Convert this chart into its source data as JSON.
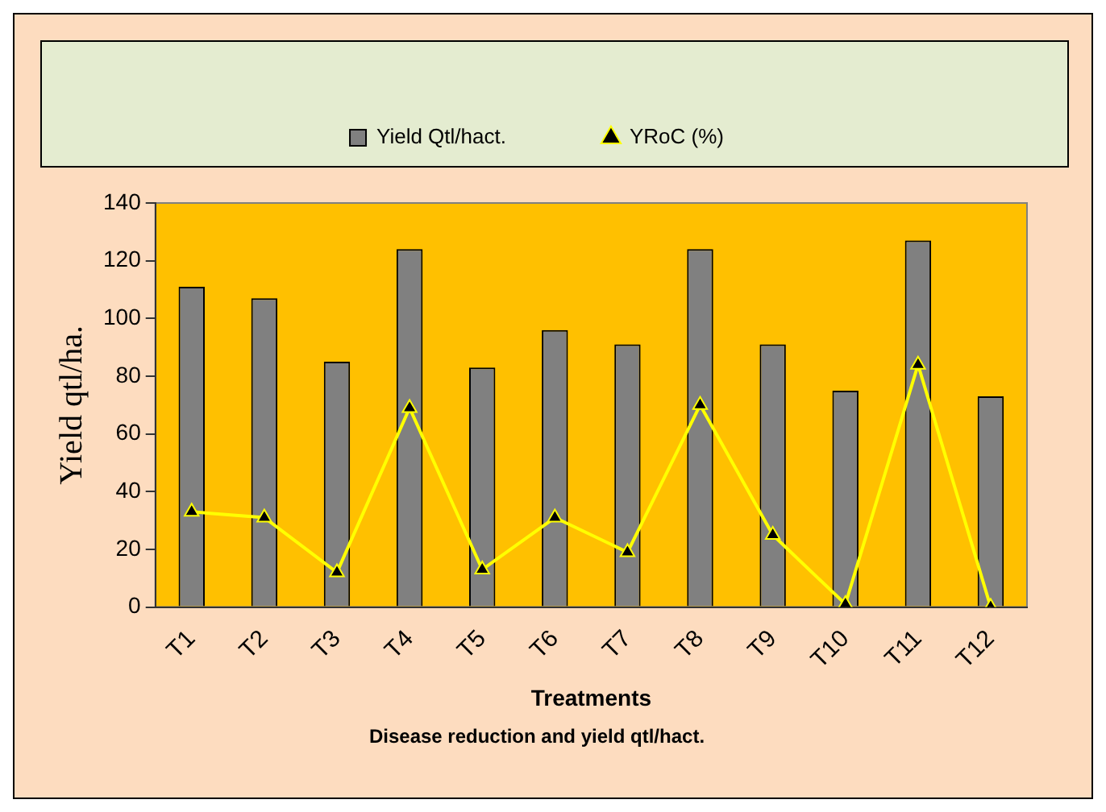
{
  "chart_data": {
    "type": "bar",
    "xlabel": "Treatments",
    "ylabel": "Yield qtl/ha.",
    "annotations": [
      "Disease reduction and yield qtl/hact."
    ],
    "categories": [
      "T1",
      "T2",
      "T3",
      "T4",
      "T5",
      "T6",
      "T7",
      "T8",
      "T9",
      "T10",
      "T11",
      "T12"
    ],
    "series": [
      {
        "name": "Yield Qtl/hact.",
        "color": "#808080",
        "values": [
          111,
          107,
          85,
          124,
          83,
          96,
          91,
          124,
          91,
          75,
          127,
          73
        ]
      },
      {
        "name": "YRoC (%)",
        "type": "line",
        "color": "#ffff00",
        "values": [
          33,
          31,
          12,
          69,
          13,
          31,
          19,
          70,
          25,
          1,
          84,
          0
        ]
      }
    ],
    "ylim": [
      0,
      140
    ],
    "yticks": [
      0,
      20,
      40,
      60,
      80,
      100,
      120,
      140
    ],
    "grid": false,
    "legend": "top",
    "marker": "triangle"
  }
}
